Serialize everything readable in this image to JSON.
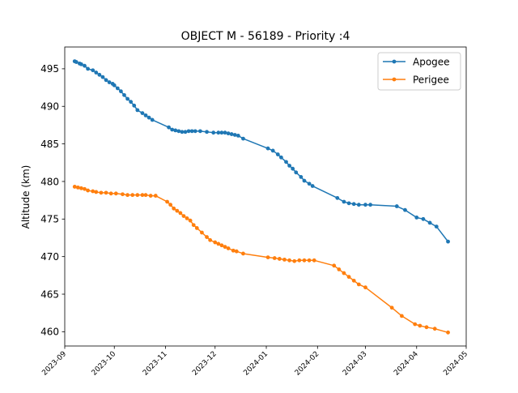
{
  "chart_data": {
    "type": "line",
    "title": "OBJECT M - 56189 - Priority :4",
    "xlabel": "",
    "ylabel": "Altitude (km)",
    "xlim": [
      "2023-09-01",
      "2024-05-01"
    ],
    "ylim": [
      458.1,
      497.9
    ],
    "x_ticks": [
      "2023-09",
      "2023-10",
      "2023-11",
      "2023-12",
      "2024-01",
      "2024-02",
      "2024-03",
      "2024-04",
      "2024-05"
    ],
    "y_ticks": [
      460,
      465,
      470,
      475,
      480,
      485,
      490,
      495
    ],
    "grid": false,
    "legend_position": "top-right",
    "series": [
      {
        "name": "Apogee",
        "color": "#1f77b4",
        "points": [
          [
            "2023-09-07",
            496.0
          ],
          [
            "2023-09-08",
            495.9
          ],
          [
            "2023-09-10",
            495.7
          ],
          [
            "2023-09-11",
            495.6
          ],
          [
            "2023-09-13",
            495.4
          ],
          [
            "2023-09-15",
            495.0
          ],
          [
            "2023-09-18",
            494.8
          ],
          [
            "2023-09-20",
            494.5
          ],
          [
            "2023-09-22",
            494.2
          ],
          [
            "2023-09-24",
            493.9
          ],
          [
            "2023-09-26",
            493.5
          ],
          [
            "2023-09-28",
            493.2
          ],
          [
            "2023-09-30",
            493.0
          ],
          [
            "2023-10-01",
            492.8
          ],
          [
            "2023-10-03",
            492.4
          ],
          [
            "2023-10-05",
            492.0
          ],
          [
            "2023-10-07",
            491.5
          ],
          [
            "2023-10-09",
            491.0
          ],
          [
            "2023-10-11",
            490.6
          ],
          [
            "2023-10-13",
            490.1
          ],
          [
            "2023-10-15",
            489.5
          ],
          [
            "2023-10-18",
            489.1
          ],
          [
            "2023-10-20",
            488.8
          ],
          [
            "2023-10-22",
            488.5
          ],
          [
            "2023-10-24",
            488.2
          ],
          [
            "2023-11-03",
            487.2
          ],
          [
            "2023-11-05",
            486.9
          ],
          [
            "2023-11-07",
            486.8
          ],
          [
            "2023-11-09",
            486.7
          ],
          [
            "2023-11-11",
            486.6
          ],
          [
            "2023-11-13",
            486.6
          ],
          [
            "2023-11-15",
            486.7
          ],
          [
            "2023-11-17",
            486.7
          ],
          [
            "2023-11-19",
            486.7
          ],
          [
            "2023-11-22",
            486.7
          ],
          [
            "2023-11-26",
            486.6
          ],
          [
            "2023-11-30",
            486.5
          ],
          [
            "2023-12-03",
            486.5
          ],
          [
            "2023-12-05",
            486.5
          ],
          [
            "2023-12-07",
            486.5
          ],
          [
            "2023-12-09",
            486.4
          ],
          [
            "2023-12-11",
            486.3
          ],
          [
            "2023-12-13",
            486.2
          ],
          [
            "2023-12-15",
            486.1
          ],
          [
            "2023-12-18",
            485.7
          ],
          [
            "2024-01-02",
            484.4
          ],
          [
            "2024-01-05",
            484.1
          ],
          [
            "2024-01-08",
            483.6
          ],
          [
            "2024-01-10",
            483.2
          ],
          [
            "2024-01-13",
            482.6
          ],
          [
            "2024-01-15",
            482.1
          ],
          [
            "2024-01-17",
            481.7
          ],
          [
            "2024-01-19",
            481.2
          ],
          [
            "2024-01-22",
            480.6
          ],
          [
            "2024-01-24",
            480.1
          ],
          [
            "2024-01-27",
            479.7
          ],
          [
            "2024-01-29",
            479.4
          ],
          [
            "2024-02-13",
            477.8
          ],
          [
            "2024-02-17",
            477.3
          ],
          [
            "2024-02-20",
            477.1
          ],
          [
            "2024-02-23",
            477.0
          ],
          [
            "2024-02-26",
            476.9
          ],
          [
            "2024-03-01",
            476.9
          ],
          [
            "2024-03-04",
            476.9
          ],
          [
            "2024-03-20",
            476.7
          ],
          [
            "2024-03-25",
            476.2
          ],
          [
            "2024-04-01",
            475.2
          ],
          [
            "2024-04-05",
            475.0
          ],
          [
            "2024-04-09",
            474.5
          ],
          [
            "2024-04-13",
            474.0
          ],
          [
            "2024-04-20",
            472.0
          ]
        ]
      },
      {
        "name": "Perigee",
        "color": "#ff7f0e",
        "points": [
          [
            "2023-09-07",
            479.3
          ],
          [
            "2023-09-09",
            479.2
          ],
          [
            "2023-09-11",
            479.1
          ],
          [
            "2023-09-13",
            479.0
          ],
          [
            "2023-09-15",
            478.8
          ],
          [
            "2023-09-18",
            478.7
          ],
          [
            "2023-09-20",
            478.6
          ],
          [
            "2023-09-23",
            478.5
          ],
          [
            "2023-09-26",
            478.5
          ],
          [
            "2023-09-29",
            478.4
          ],
          [
            "2023-10-02",
            478.4
          ],
          [
            "2023-10-06",
            478.3
          ],
          [
            "2023-10-09",
            478.2
          ],
          [
            "2023-10-12",
            478.2
          ],
          [
            "2023-10-15",
            478.2
          ],
          [
            "2023-10-18",
            478.2
          ],
          [
            "2023-10-20",
            478.2
          ],
          [
            "2023-10-23",
            478.1
          ],
          [
            "2023-10-26",
            478.1
          ],
          [
            "2023-11-02",
            477.3
          ],
          [
            "2023-11-04",
            476.9
          ],
          [
            "2023-11-06",
            476.4
          ],
          [
            "2023-11-08",
            476.1
          ],
          [
            "2023-11-10",
            475.8
          ],
          [
            "2023-11-12",
            475.4
          ],
          [
            "2023-11-14",
            475.1
          ],
          [
            "2023-11-16",
            474.8
          ],
          [
            "2023-11-18",
            474.2
          ],
          [
            "2023-11-20",
            473.8
          ],
          [
            "2023-11-23",
            473.2
          ],
          [
            "2023-11-26",
            472.6
          ],
          [
            "2023-11-28",
            472.2
          ],
          [
            "2023-12-01",
            471.9
          ],
          [
            "2023-12-03",
            471.7
          ],
          [
            "2023-12-05",
            471.5
          ],
          [
            "2023-12-07",
            471.3
          ],
          [
            "2023-12-09",
            471.1
          ],
          [
            "2023-12-12",
            470.8
          ],
          [
            "2023-12-14",
            470.7
          ],
          [
            "2023-12-18",
            470.4
          ],
          [
            "2024-01-02",
            469.9
          ],
          [
            "2024-01-06",
            469.8
          ],
          [
            "2024-01-09",
            469.7
          ],
          [
            "2024-01-12",
            469.6
          ],
          [
            "2024-01-15",
            469.5
          ],
          [
            "2024-01-18",
            469.4
          ],
          [
            "2024-01-21",
            469.5
          ],
          [
            "2024-01-24",
            469.5
          ],
          [
            "2024-01-27",
            469.5
          ],
          [
            "2024-01-30",
            469.5
          ],
          [
            "2024-02-11",
            468.8
          ],
          [
            "2024-02-14",
            468.3
          ],
          [
            "2024-02-17",
            467.8
          ],
          [
            "2024-02-20",
            467.3
          ],
          [
            "2024-02-23",
            466.8
          ],
          [
            "2024-02-26",
            466.3
          ],
          [
            "2024-03-01",
            465.9
          ],
          [
            "2024-03-17",
            463.2
          ],
          [
            "2024-03-23",
            462.1
          ],
          [
            "2024-03-31",
            461.0
          ],
          [
            "2024-04-03",
            460.8
          ],
          [
            "2024-04-07",
            460.6
          ],
          [
            "2024-04-12",
            460.4
          ],
          [
            "2024-04-20",
            459.9
          ]
        ]
      }
    ]
  }
}
